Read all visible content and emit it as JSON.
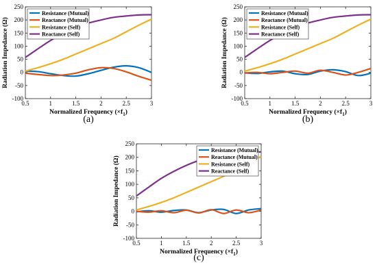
{
  "colors": {
    "resistance_mutual": "#0072BD",
    "reactance_mutual": "#D95319",
    "resistance_self": "#EDB120",
    "reactance_self": "#7E2F8E"
  },
  "chart_data": [
    {
      "panel_label": "(a)",
      "type": "line",
      "xlabel": "Normalized Frequency (×f",
      "xlabel_sub": "1",
      "xlabel_close": ")",
      "ylabel": "Radiation Impedance (Ω)",
      "xlim": [
        0.5,
        3
      ],
      "ylim": [
        -100,
        250
      ],
      "xticks": [
        "0.5",
        "1",
        "1.5",
        "2",
        "2.5",
        "3"
      ],
      "yticks": [
        "-100",
        "-50",
        "0",
        "50",
        "100",
        "150",
        "200",
        "250"
      ],
      "legend_position": "top-left",
      "x": [
        0.5,
        0.75,
        1.0,
        1.25,
        1.5,
        1.75,
        2.0,
        2.25,
        2.5,
        2.75,
        3.0
      ],
      "series": [
        {
          "name": "Resistance (Mutual)",
          "color_key": "resistance_mutual",
          "values": [
            5,
            3,
            -5,
            -12,
            -14,
            -5,
            8,
            20,
            25,
            18,
            0
          ]
        },
        {
          "name": "Reactance (Mutual)",
          "color_key": "reactance_mutual",
          "values": [
            -3,
            -8,
            -12,
            -10,
            -3,
            10,
            18,
            15,
            2,
            -15,
            -30
          ]
        },
        {
          "name": "Resistance (Self)",
          "color_key": "resistance_self",
          "values": [
            5,
            18,
            33,
            50,
            70,
            90,
            110,
            130,
            155,
            180,
            203
          ]
        },
        {
          "name": "Reactance (Self)",
          "color_key": "reactance_self",
          "values": [
            57,
            90,
            122,
            148,
            170,
            188,
            200,
            210,
            215,
            219,
            220
          ]
        }
      ]
    },
    {
      "panel_label": "(b)",
      "type": "line",
      "xlabel": "Normalized Frequency (×f",
      "xlabel_sub": "1",
      "xlabel_close": ")",
      "ylabel": "Radiation Impedance (Ω)",
      "xlim": [
        0.5,
        3
      ],
      "ylim": [
        -100,
        250
      ],
      "xticks": [
        "0.5",
        "1",
        "1.5",
        "2",
        "2.5",
        "3"
      ],
      "yticks": [
        "-100",
        "-50",
        "0",
        "50",
        "100",
        "150",
        "200",
        "250"
      ],
      "legend_position": "top-left",
      "x": [
        0.5,
        0.75,
        1.0,
        1.25,
        1.5,
        1.75,
        2.0,
        2.25,
        2.5,
        2.75,
        3.0
      ],
      "series": [
        {
          "name": "Resistance (Mutual)",
          "color_key": "resistance_mutual",
          "values": [
            -2,
            -4,
            2,
            5,
            -5,
            -8,
            5,
            10,
            3,
            -12,
            -3
          ]
        },
        {
          "name": "Reactance (Mutual)",
          "color_key": "reactance_mutual",
          "values": [
            -2,
            0,
            -5,
            0,
            5,
            -3,
            8,
            0,
            -10,
            0,
            15
          ]
        },
        {
          "name": "Resistance (Self)",
          "color_key": "resistance_self",
          "values": [
            5,
            18,
            33,
            50,
            70,
            90,
            110,
            130,
            155,
            180,
            203
          ]
        },
        {
          "name": "Reactance (Self)",
          "color_key": "reactance_self",
          "values": [
            57,
            90,
            122,
            148,
            170,
            188,
            200,
            210,
            215,
            219,
            220
          ]
        }
      ]
    },
    {
      "panel_label": "(c)",
      "type": "line",
      "xlabel": "Normalized Frequency (×f",
      "xlabel_sub": "1",
      "xlabel_close": ")",
      "ylabel": "Radiation Impedance (Ω)",
      "xlim": [
        0.5,
        3
      ],
      "ylim": [
        -100,
        250
      ],
      "xticks": [
        "0.5",
        "1",
        "1.5",
        "2",
        "2.5",
        "3"
      ],
      "yticks": [
        "-100",
        "-50",
        "0",
        "50",
        "100",
        "150",
        "200",
        "250"
      ],
      "legend_position": "top-right",
      "x": [
        0.5,
        0.75,
        1.0,
        1.25,
        1.5,
        1.75,
        2.0,
        2.25,
        2.5,
        2.75,
        3.0
      ],
      "series": [
        {
          "name": "Resistance (Mutual)",
          "color_key": "resistance_mutual",
          "values": [
            -2,
            2,
            -3,
            3,
            5,
            -5,
            5,
            7,
            -8,
            5,
            10
          ]
        },
        {
          "name": "Reactance (Mutual)",
          "color_key": "reactance_mutual",
          "values": [
            0,
            -3,
            2,
            -5,
            4,
            -6,
            6,
            -8,
            5,
            -5,
            5
          ]
        },
        {
          "name": "Resistance (Self)",
          "color_key": "resistance_self",
          "values": [
            5,
            18,
            33,
            50,
            70,
            90,
            110,
            130,
            155,
            180,
            203
          ]
        },
        {
          "name": "Reactance (Self)",
          "color_key": "reactance_self",
          "values": [
            57,
            90,
            122,
            148,
            170,
            188,
            200,
            210,
            215,
            219,
            220
          ]
        }
      ]
    }
  ]
}
